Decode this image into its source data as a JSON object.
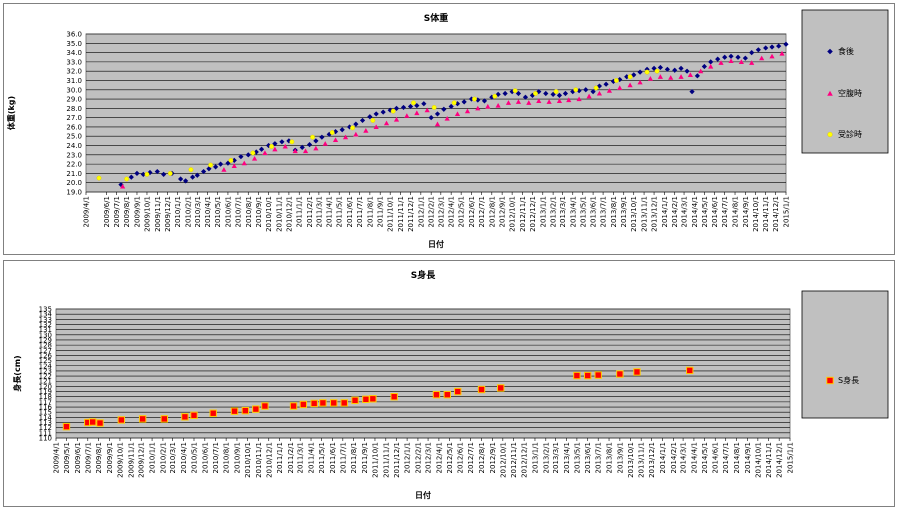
{
  "chart_data": [
    {
      "type": "scatter",
      "title": "S体重",
      "xlabel": "日付",
      "ylabel": "体重(kg)",
      "ylim": [
        19.0,
        36.0
      ],
      "yticks": [
        "19.0",
        "20.0",
        "21.0",
        "22.0",
        "23.0",
        "24.0",
        "25.0",
        "26.0",
        "27.0",
        "28.0",
        "29.0",
        "30.0",
        "31.0",
        "32.0",
        "33.0",
        "34.0",
        "35.0",
        "36.0"
      ],
      "xticks": [
        "2009/4/1",
        "2009/6/1",
        "2009/7/1",
        "2009/8/1",
        "2009/9/1",
        "2009/10/1",
        "2009/11/1",
        "2009/12/1",
        "2010/1/1",
        "2010/2/1",
        "2010/3/1",
        "2010/4/1",
        "2010/5/1",
        "2010/6/1",
        "2010/7/1",
        "2010/8/1",
        "2010/9/1",
        "2010/10/1",
        "2010/11/1",
        "2010/12/1",
        "2011/1/1",
        "2011/2/1",
        "2011/3/1",
        "2011/4/1",
        "2011/5/1",
        "2011/6/1",
        "2011/7/1",
        "2011/8/1",
        "2011/9/1",
        "2011/10/1",
        "2011/11/1",
        "2011/12/1",
        "2012/1/1",
        "2012/2/1",
        "2012/3/1",
        "2012/4/1",
        "2012/5/1",
        "2012/6/1",
        "2012/7/1",
        "2012/8/1",
        "2012/9/1",
        "2012/10/1",
        "2012/11/1",
        "2012/12/1",
        "2013/1/1",
        "2013/2/1",
        "2013/3/1",
        "2013/4/1",
        "2013/5/1",
        "2013/6/1",
        "2013/7/1",
        "2013/8/1",
        "2013/9/1",
        "2013/10/1",
        "2013/11/1",
        "2013/12/1",
        "2014/1/1",
        "2014/2/1",
        "2014/3/1",
        "2014/4/1",
        "2014/5/1",
        "2014/6/1",
        "2014/7/1",
        "2014/8/1",
        "2014/9/1",
        "2014/10/1",
        "2014/11/1",
        "2014/12/1",
        "2015/1/1"
      ],
      "legend_position": "right",
      "grid": true,
      "plot_background": "#c0c0c0",
      "series": [
        {
          "name": "食後",
          "marker": "diamond",
          "color": "#000080",
          "x": [
            "2009/7/15",
            "2009/8/15",
            "2009/9/1",
            "2009/9/20",
            "2009/10/10",
            "2009/11/1",
            "2009/11/20",
            "2009/12/15",
            "2010/1/10",
            "2010/1/25",
            "2010/2/15",
            "2010/3/1",
            "2010/3/20",
            "2010/4/5",
            "2010/4/25",
            "2010/5/10",
            "2010/6/1",
            "2010/6/20",
            "2010/7/10",
            "2010/8/1",
            "2010/8/25",
            "2010/9/10",
            "2010/10/1",
            "2010/10/20",
            "2010/11/10",
            "2010/12/1",
            "2010/12/20",
            "2011/1/10",
            "2011/2/1",
            "2011/2/20",
            "2011/3/10",
            "2011/4/1",
            "2011/4/20",
            "2011/5/10",
            "2011/6/1",
            "2011/6/20",
            "2011/7/10",
            "2011/8/1",
            "2011/8/20",
            "2011/9/10",
            "2011/10/1",
            "2011/10/20",
            "2011/11/10",
            "2011/12/1",
            "2011/12/20",
            "2012/1/10",
            "2012/2/1",
            "2012/2/20",
            "2012/3/10",
            "2012/4/1",
            "2012/4/20",
            "2012/5/10",
            "2012/6/1",
            "2012/6/20",
            "2012/7/10",
            "2012/8/1",
            "2012/8/20",
            "2012/9/10",
            "2012/10/1",
            "2012/10/20",
            "2012/11/10",
            "2012/12/1",
            "2012/12/20",
            "2013/1/10",
            "2013/2/1",
            "2013/2/20",
            "2013/3/10",
            "2013/4/1",
            "2013/4/20",
            "2013/5/10",
            "2013/6/1",
            "2013/6/20",
            "2013/7/10",
            "2013/8/1",
            "2013/8/20",
            "2013/9/10",
            "2013/10/1",
            "2013/10/20",
            "2013/11/10",
            "2013/12/1",
            "2013/12/20",
            "2014/1/10",
            "2014/2/1",
            "2014/2/20",
            "2014/3/10",
            "2014/3/25",
            "2014/4/10",
            "2014/5/1",
            "2014/5/20",
            "2014/6/10",
            "2014/7/1",
            "2014/7/20",
            "2014/8/10",
            "2014/9/1",
            "2014/9/20",
            "2014/10/10",
            "2014/11/1",
            "2014/11/20",
            "2014/12/10",
            "2015/1/1"
          ],
          "y": [
            19.8,
            20.6,
            21.0,
            20.9,
            21.1,
            21.2,
            20.9,
            21.0,
            20.4,
            20.2,
            20.6,
            20.8,
            21.2,
            21.5,
            21.7,
            22.0,
            22.1,
            22.4,
            22.8,
            23.0,
            23.3,
            23.6,
            24.0,
            24.2,
            24.4,
            24.5,
            23.5,
            23.8,
            24.1,
            24.5,
            24.9,
            25.2,
            25.5,
            25.7,
            26.0,
            26.3,
            26.7,
            27.1,
            27.4,
            27.6,
            27.8,
            28.0,
            28.1,
            28.2,
            28.3,
            28.5,
            27.0,
            27.4,
            27.9,
            28.2,
            28.5,
            28.7,
            29.0,
            28.9,
            28.8,
            29.2,
            29.5,
            29.6,
            29.8,
            29.6,
            29.2,
            29.4,
            29.8,
            29.6,
            29.5,
            29.4,
            29.6,
            29.8,
            29.9,
            30.0,
            29.8,
            30.4,
            30.6,
            30.9,
            31.1,
            31.4,
            31.6,
            31.9,
            32.2,
            32.3,
            32.4,
            32.2,
            32.1,
            32.3,
            32.0,
            29.8,
            31.5,
            32.5,
            33.0,
            33.3,
            33.5,
            33.6,
            33.5,
            33.4,
            34.0,
            34.3,
            34.5,
            34.6,
            34.7,
            34.9
          ]
        },
        {
          "name": "空腹時",
          "marker": "triangle",
          "color": "#ff0080",
          "x": [
            "2009/7/20",
            "2010/5/20",
            "2010/6/20",
            "2010/7/20",
            "2010/8/20",
            "2010/9/20",
            "2010/10/20",
            "2010/11/20",
            "2010/12/20",
            "2011/1/20",
            "2011/2/20",
            "2011/3/20",
            "2011/4/20",
            "2011/5/20",
            "2011/6/20",
            "2011/7/20",
            "2011/8/20",
            "2011/9/20",
            "2011/10/20",
            "2011/11/20",
            "2011/12/20",
            "2012/1/20",
            "2012/2/20",
            "2012/3/20",
            "2012/4/20",
            "2012/5/20",
            "2012/6/20",
            "2012/7/20",
            "2012/8/20",
            "2012/9/20",
            "2012/10/20",
            "2012/11/20",
            "2012/12/20",
            "2013/1/20",
            "2013/2/20",
            "2013/3/20",
            "2013/4/20",
            "2013/5/20",
            "2013/6/20",
            "2013/7/20",
            "2013/8/20",
            "2013/9/20",
            "2013/10/20",
            "2013/11/20",
            "2013/12/20",
            "2014/1/20",
            "2014/2/20",
            "2014/3/20",
            "2014/4/20",
            "2014/5/20",
            "2014/6/20",
            "2014/7/20",
            "2014/8/20",
            "2014/9/20",
            "2014/10/20",
            "2014/11/20",
            "2014/12/20"
          ],
          "y": [
            19.6,
            21.4,
            21.8,
            22.1,
            22.6,
            23.2,
            23.6,
            23.9,
            23.4,
            23.4,
            23.7,
            24.2,
            24.6,
            24.9,
            25.2,
            25.6,
            26.0,
            26.4,
            26.8,
            27.2,
            27.5,
            27.8,
            26.3,
            26.9,
            27.4,
            27.7,
            28.0,
            28.2,
            28.3,
            28.6,
            28.7,
            28.6,
            28.8,
            28.7,
            28.8,
            28.9,
            29.0,
            29.3,
            29.6,
            29.9,
            30.2,
            30.5,
            30.8,
            31.2,
            31.4,
            31.3,
            31.4,
            31.6,
            32.0,
            32.5,
            32.9,
            33.1,
            33.0,
            32.9,
            33.4,
            33.6,
            33.9
          ]
        },
        {
          "name": "受診時",
          "marker": "circle",
          "color": "#ffff00",
          "x": [
            "2009/5/10",
            "2009/8/1",
            "2009/10/1",
            "2009/12/10",
            "2010/2/10",
            "2010/4/10",
            "2010/6/10",
            "2010/8/15",
            "2010/10/10",
            "2010/12/10",
            "2011/2/10",
            "2011/4/10",
            "2011/6/10",
            "2011/8/10",
            "2011/10/10",
            "2011/12/10",
            "2012/2/10",
            "2012/4/10",
            "2012/6/10",
            "2012/8/10",
            "2012/10/10",
            "2012/12/10",
            "2013/2/10",
            "2013/4/10",
            "2013/6/10",
            "2013/8/10",
            "2013/9/20",
            "2013/11/10",
            "2013/12/10"
          ],
          "y": [
            20.5,
            20.4,
            20.9,
            21.0,
            21.4,
            21.9,
            22.4,
            23.2,
            23.9,
            24.4,
            24.9,
            25.4,
            25.9,
            26.7,
            27.7,
            28.6,
            28.1,
            28.6,
            29.0,
            29.3,
            29.9,
            29.6,
            29.8,
            30.0,
            30.2,
            31.0,
            31.4,
            31.9,
            32.0
          ]
        }
      ]
    },
    {
      "type": "scatter",
      "title": "S身長",
      "xlabel": "日付",
      "ylabel": "身長(cm)",
      "ylim": [
        110,
        135
      ],
      "yticks": [
        "110",
        "111",
        "112",
        "113",
        "114",
        "115",
        "116",
        "117",
        "118",
        "119",
        "120",
        "121",
        "122",
        "123",
        "124",
        "125",
        "126",
        "127",
        "128",
        "129",
        "130",
        "131",
        "132",
        "133",
        "134",
        "135"
      ],
      "xticks": [
        "2009/4/1",
        "2009/5/1",
        "2009/6/1",
        "2009/7/1",
        "2009/8/1",
        "2009/9/1",
        "2009/10/1",
        "2009/11/1",
        "2009/12/1",
        "2010/1/1",
        "2010/2/1",
        "2010/3/1",
        "2010/4/1",
        "2010/5/1",
        "2010/6/1",
        "2010/7/1",
        "2010/8/1",
        "2010/9/1",
        "2010/10/1",
        "2010/11/1",
        "2010/12/1",
        "2011/1/1",
        "2011/2/1",
        "2011/3/1",
        "2011/4/1",
        "2011/5/1",
        "2011/6/1",
        "2011/7/1",
        "2011/8/1",
        "2011/9/1",
        "2011/10/1",
        "2011/11/1",
        "2011/12/1",
        "2012/1/1",
        "2012/2/1",
        "2012/3/1",
        "2012/4/1",
        "2012/5/1",
        "2012/6/1",
        "2012/7/1",
        "2012/8/1",
        "2012/9/1",
        "2012/10/1",
        "2012/11/1",
        "2012/12/1",
        "2013/1/1",
        "2013/2/1",
        "2013/3/1",
        "2013/4/1",
        "2013/5/1",
        "2013/6/1",
        "2013/7/1",
        "2013/8/1",
        "2013/9/1",
        "2013/10/1",
        "2013/11/1",
        "2013/12/1",
        "2014/1/1",
        "2014/2/1",
        "2014/3/1",
        "2014/4/1",
        "2014/5/1",
        "2014/6/1",
        "2014/7/1",
        "2014/8/1",
        "2014/9/1",
        "2014/10/1",
        "2014/11/1",
        "2014/12/1",
        "2015/1/1"
      ],
      "legend_position": "right",
      "grid": true,
      "plot_background": "#c0c0c0",
      "series": [
        {
          "name": "S身長",
          "marker": "square",
          "color": "#ff0000",
          "edge_color": "#ffcc00",
          "x": [
            "2009/5/1",
            "2009/7/1",
            "2009/7/15",
            "2009/8/5",
            "2009/10/5",
            "2009/12/5",
            "2010/2/5",
            "2010/4/5",
            "2010/5/1",
            "2010/6/25",
            "2010/8/25",
            "2010/9/25",
            "2010/10/25",
            "2010/11/20",
            "2011/2/10",
            "2011/3/10",
            "2011/4/10",
            "2011/5/5",
            "2011/6/5",
            "2011/7/5",
            "2011/8/5",
            "2011/9/5",
            "2011/9/25",
            "2011/11/25",
            "2012/3/25",
            "2012/4/25",
            "2012/5/25",
            "2012/8/1",
            "2012/9/25",
            "2013/5/1",
            "2013/6/1",
            "2013/7/1",
            "2013/9/1",
            "2013/10/20",
            "2014/3/20"
          ],
          "y": [
            112.2,
            113.0,
            113.1,
            112.9,
            113.5,
            113.7,
            113.7,
            114.1,
            114.4,
            114.8,
            115.2,
            115.3,
            115.6,
            116.2,
            116.2,
            116.5,
            116.7,
            116.8,
            116.8,
            116.8,
            117.3,
            117.5,
            117.6,
            118.0,
            118.4,
            118.4,
            119.0,
            119.4,
            119.7,
            122.1,
            122.1,
            122.2,
            122.4,
            122.8,
            123.1
          ]
        }
      ]
    }
  ]
}
